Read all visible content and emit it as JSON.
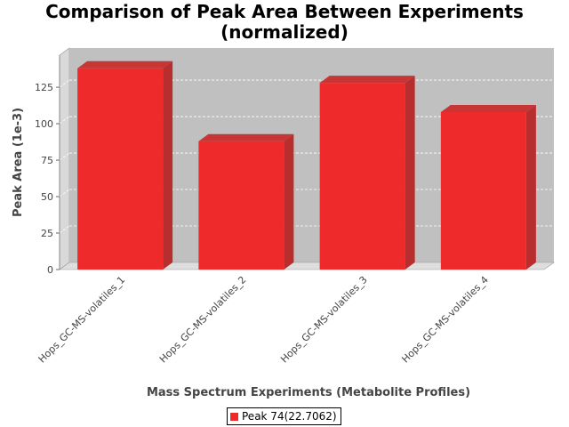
{
  "chart_data": {
    "type": "bar",
    "title_line1": "Comparison of Peak Area Between Experiments",
    "title_line2": "(normalized)",
    "xlabel": "Mass Spectrum Experiments (Metabolite Profiles)",
    "ylabel": "Peak Area (1e-3)",
    "categories": [
      "Hops_GC-MS-volatiles_1",
      "Hops_GC-MS-volatiles_2",
      "Hops_GC-MS-volatiles_3",
      "Hops_GC-MS-volatiles_4"
    ],
    "series": [
      {
        "name": "Peak 74(22.7062)",
        "values": [
          138,
          88,
          128,
          108
        ],
        "color": "#ee2a2a"
      }
    ],
    "yticks": [
      0,
      25,
      50,
      75,
      100,
      125
    ],
    "ylim": [
      0,
      147
    ],
    "grid": true,
    "legend_position": "bottom"
  }
}
